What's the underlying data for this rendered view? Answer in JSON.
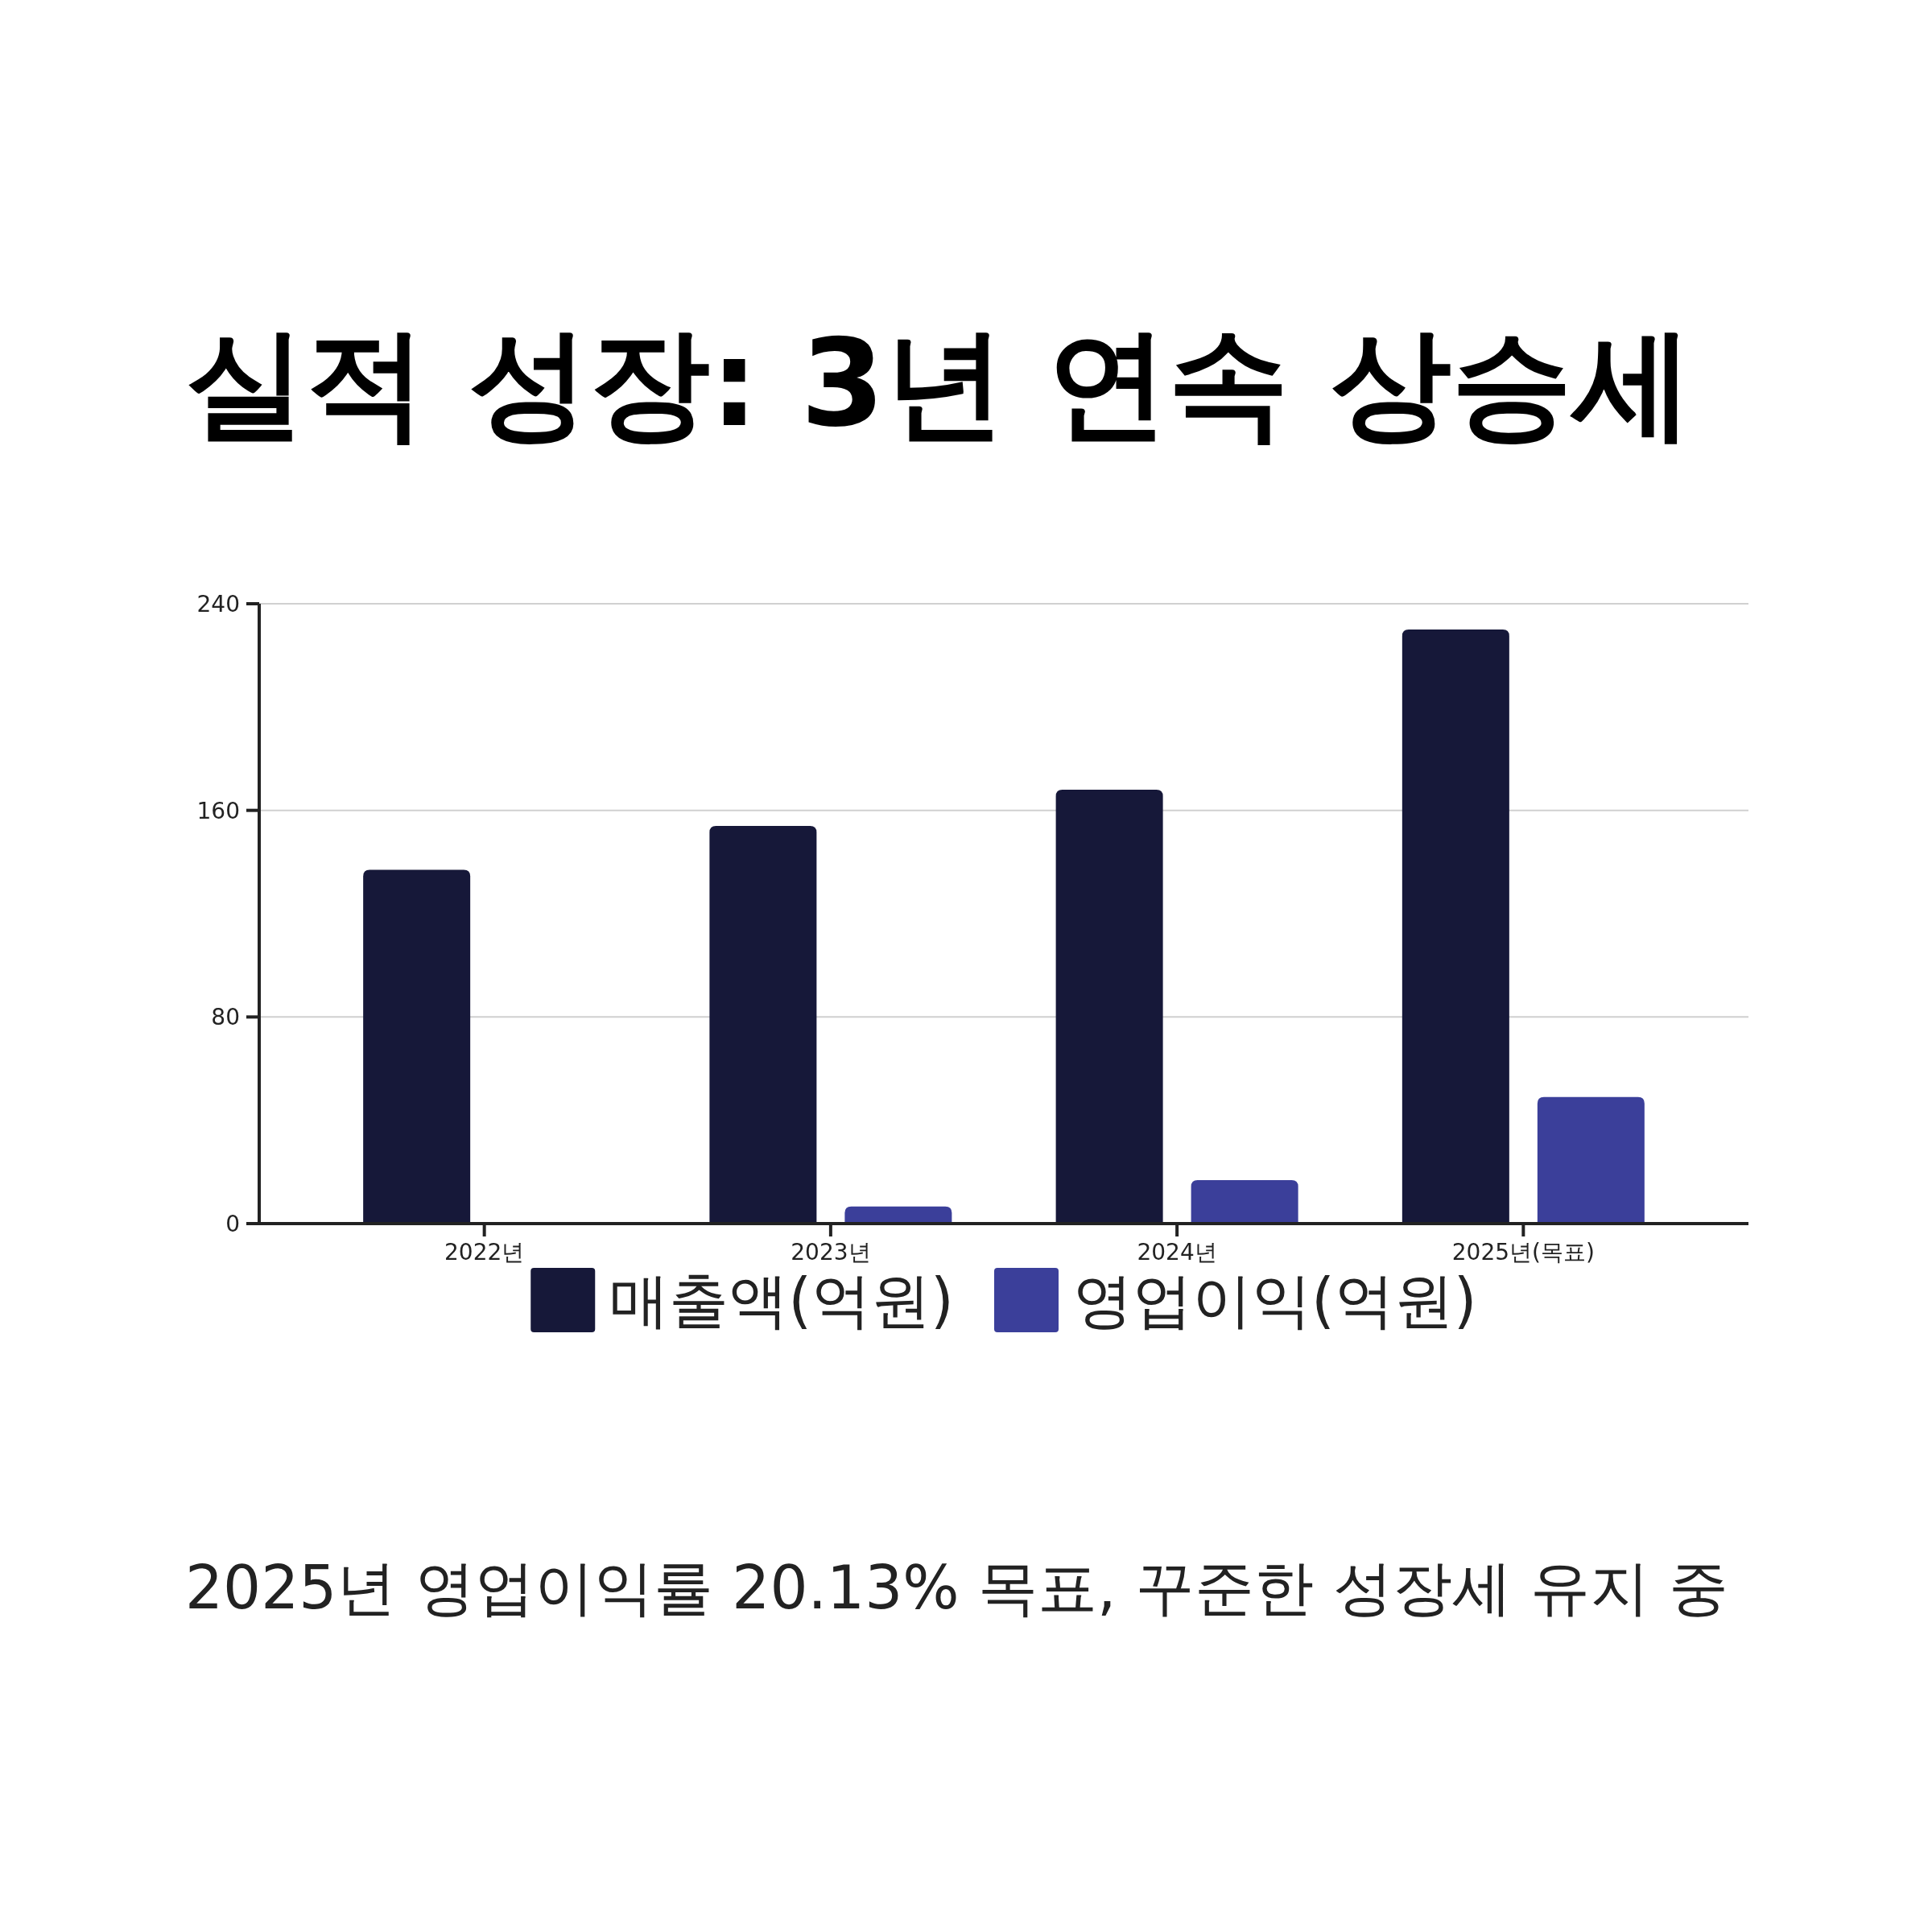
{
  "chart_data": {
    "type": "bar",
    "title": "실적 성장: 3년 연속 상승세",
    "categories": [
      "2022년",
      "2023년",
      "2024년",
      "2025년(목표)"
    ],
    "series": [
      {
        "name": "매출액(억원)",
        "color": "#161839",
        "values": [
          137,
          154,
          168,
          230
        ]
      },
      {
        "name": "영업이익(억원)",
        "color": "#3b3f9a",
        "values": [
          null,
          6.6,
          16.8,
          49
        ]
      }
    ],
    "ylim": [
      0,
      240
    ],
    "yticks": [
      0,
      80,
      160,
      240
    ],
    "grid": "y",
    "legend": "bottom",
    "annotations": [
      "2025년 영업이익률 20.13% 목표, 꾸준한 성장세 유지 중"
    ]
  }
}
